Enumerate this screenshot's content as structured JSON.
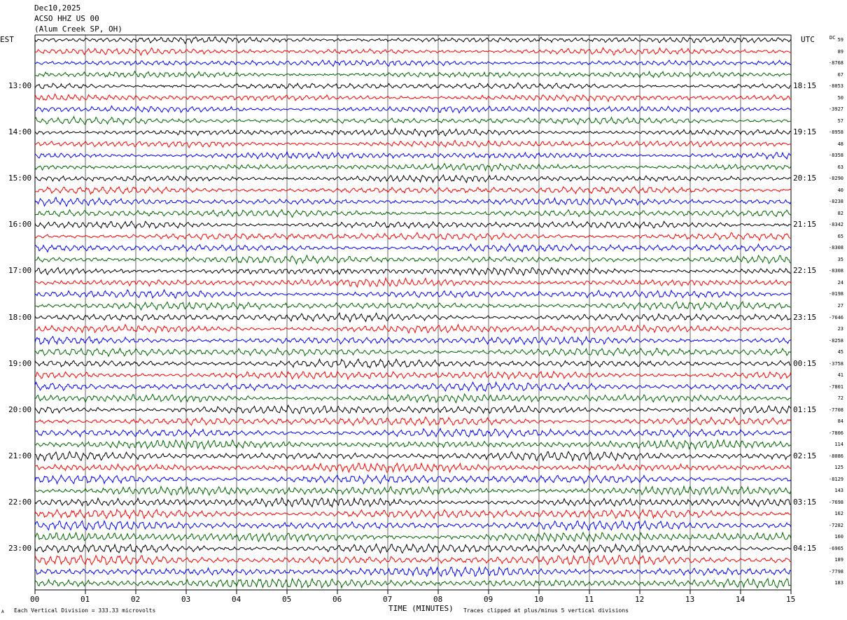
{
  "header": {
    "date": "Dec10,2025",
    "station": "ACSO HHZ US 00",
    "location": "(Alum Creek SP, OH)"
  },
  "left_tz": "EST",
  "right_tz": "UTC",
  "dc_label": "DC",
  "footer": {
    "scale_note": "Each Vertical Division =  333.33 microvolts",
    "clip_note": "Traces clipped at plus/minus 5 vertical divisions",
    "corner_mark": "A"
  },
  "colors": {
    "cycle": [
      "#000000",
      "#ff0000",
      "#0000ff",
      "#006400"
    ],
    "grid": "#000000"
  },
  "chart_data": {
    "type": "line",
    "xlabel": "TIME (MINUTES)",
    "x_ticks": [
      "00",
      "01",
      "02",
      "03",
      "04",
      "05",
      "06",
      "07",
      "08",
      "09",
      "10",
      "11",
      "12",
      "13",
      "14",
      "15"
    ],
    "xlim": [
      0,
      15
    ],
    "row_count": 48,
    "left_hour_labels": [
      "13:00",
      "14:00",
      "15:00",
      "16:00",
      "17:00",
      "18:00",
      "19:00",
      "20:00",
      "21:00",
      "22:00",
      "23:00"
    ],
    "right_hour_labels": [
      "18:15",
      "19:15",
      "20:15",
      "21:15",
      "22:15",
      "23:15",
      "00:15",
      "01:15",
      "02:15",
      "03:15",
      "04:15"
    ],
    "dc_offsets": [
      "59",
      "89",
      "-8768",
      "67",
      "-8053",
      "50",
      "-3927",
      "57",
      "-8958",
      "48",
      "-8358",
      "63",
      "-8290",
      "40",
      "-8238",
      "82",
      "-8342",
      "65",
      "-8308",
      "35",
      "-8308",
      "24",
      "-0198",
      "27",
      "-7646",
      "23",
      "-8258",
      "45",
      "-3758",
      "41",
      "-7801",
      "72",
      "-7708",
      "84",
      "-7806",
      "114",
      "-8086",
      "125",
      "-8129",
      "143",
      "-7698",
      "162",
      "-7282",
      "160",
      "-6965",
      "189",
      "-7798",
      "183"
    ]
  }
}
